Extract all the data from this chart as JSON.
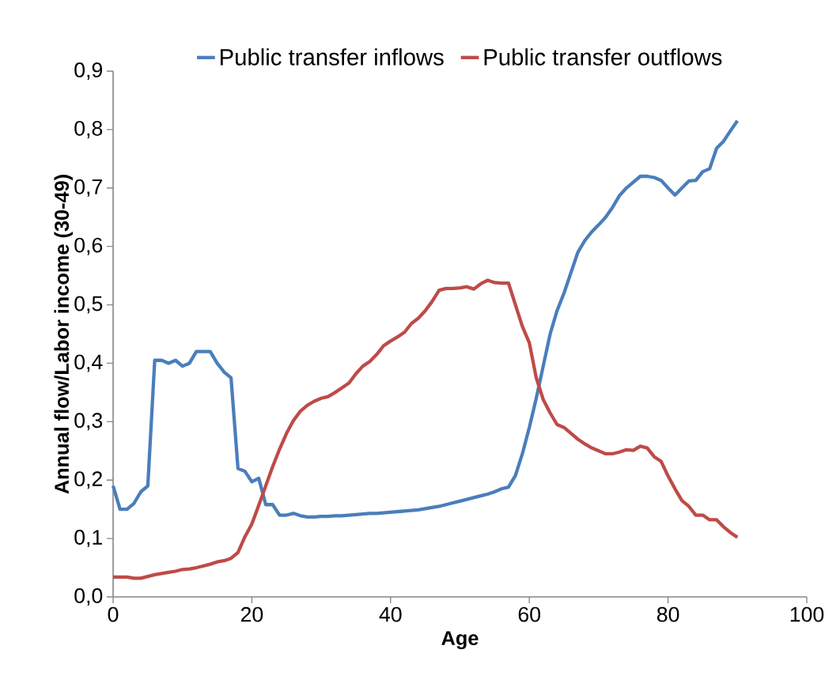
{
  "chart_data": {
    "type": "line",
    "xlabel": "Age",
    "ylabel": "Annual flow/Labor income (30-49)",
    "x": [
      0,
      1,
      2,
      3,
      4,
      5,
      6,
      7,
      8,
      9,
      10,
      11,
      12,
      13,
      14,
      15,
      16,
      17,
      18,
      19,
      20,
      21,
      22,
      23,
      24,
      25,
      26,
      27,
      28,
      29,
      30,
      31,
      32,
      33,
      34,
      35,
      36,
      37,
      38,
      39,
      40,
      41,
      42,
      43,
      44,
      45,
      46,
      47,
      48,
      49,
      50,
      51,
      52,
      53,
      54,
      55,
      56,
      57,
      58,
      59,
      60,
      61,
      62,
      63,
      64,
      65,
      66,
      67,
      68,
      69,
      70,
      71,
      72,
      73,
      74,
      75,
      76,
      77,
      78,
      79,
      80,
      81,
      82,
      83,
      84,
      85,
      86,
      87,
      88,
      89,
      90
    ],
    "series": [
      {
        "name": "Public transfer inflows",
        "color": "#4a7ebb",
        "values": [
          0.19,
          0.15,
          0.15,
          0.16,
          0.18,
          0.19,
          0.405,
          0.405,
          0.4,
          0.405,
          0.395,
          0.4,
          0.42,
          0.42,
          0.42,
          0.4,
          0.385,
          0.375,
          0.22,
          0.215,
          0.197,
          0.203,
          0.158,
          0.158,
          0.14,
          0.14,
          0.143,
          0.139,
          0.137,
          0.137,
          0.138,
          0.138,
          0.139,
          0.139,
          0.14,
          0.141,
          0.142,
          0.143,
          0.143,
          0.144,
          0.145,
          0.146,
          0.147,
          0.148,
          0.149,
          0.151,
          0.153,
          0.155,
          0.158,
          0.161,
          0.164,
          0.167,
          0.17,
          0.173,
          0.176,
          0.18,
          0.185,
          0.188,
          0.208,
          0.245,
          0.29,
          0.34,
          0.395,
          0.45,
          0.49,
          0.52,
          0.555,
          0.59,
          0.61,
          0.625,
          0.637,
          0.65,
          0.667,
          0.687,
          0.7,
          0.71,
          0.72,
          0.72,
          0.718,
          0.713,
          0.7,
          0.688,
          0.7,
          0.712,
          0.713,
          0.728,
          0.733,
          0.768,
          0.78,
          0.798,
          0.815
        ]
      },
      {
        "name": "Public transfer outflows",
        "color": "#be4b48",
        "values": [
          0.034,
          0.034,
          0.034,
          0.032,
          0.032,
          0.035,
          0.038,
          0.04,
          0.042,
          0.044,
          0.047,
          0.048,
          0.05,
          0.053,
          0.056,
          0.06,
          0.062,
          0.066,
          0.076,
          0.103,
          0.125,
          0.157,
          0.19,
          0.223,
          0.253,
          0.28,
          0.302,
          0.318,
          0.328,
          0.335,
          0.34,
          0.343,
          0.35,
          0.358,
          0.366,
          0.382,
          0.395,
          0.403,
          0.415,
          0.43,
          0.438,
          0.445,
          0.453,
          0.468,
          0.477,
          0.49,
          0.506,
          0.525,
          0.528,
          0.528,
          0.529,
          0.531,
          0.527,
          0.536,
          0.542,
          0.538,
          0.537,
          0.537,
          0.5,
          0.463,
          0.435,
          0.375,
          0.338,
          0.315,
          0.295,
          0.29,
          0.28,
          0.27,
          0.262,
          0.255,
          0.25,
          0.245,
          0.245,
          0.248,
          0.252,
          0.251,
          0.258,
          0.255,
          0.24,
          0.232,
          0.207,
          0.185,
          0.165,
          0.155,
          0.14,
          0.14,
          0.132,
          0.132,
          0.12,
          0.11,
          0.102
        ]
      }
    ],
    "xlim": [
      0,
      100
    ],
    "xticks": [
      0,
      20,
      40,
      60,
      80,
      100
    ],
    "ylim": [
      0,
      0.9
    ],
    "yticks": [
      {
        "value": 0,
        "label": "0,0"
      },
      {
        "value": 0.1,
        "label": "0,1"
      },
      {
        "value": 0.2,
        "label": "0,2"
      },
      {
        "value": 0.3,
        "label": "0,3"
      },
      {
        "value": 0.4,
        "label": "0,4"
      },
      {
        "value": 0.5,
        "label": "0,5"
      },
      {
        "value": 0.6,
        "label": "0,6"
      },
      {
        "value": 0.7,
        "label": "0,7"
      },
      {
        "value": 0.8,
        "label": "0,8"
      },
      {
        "value": 0.9,
        "label": "0,9"
      }
    ],
    "grid": false,
    "legend": "top",
    "marker": "none",
    "line_style": "solid"
  }
}
